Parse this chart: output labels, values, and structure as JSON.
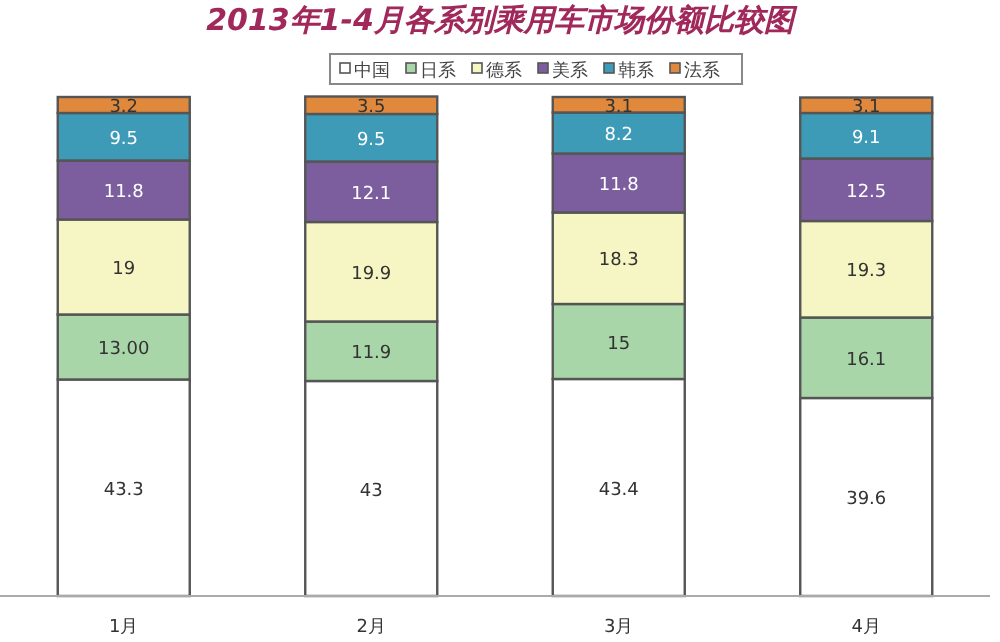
{
  "chart_data": {
    "type": "bar",
    "title": "2013年1-4月各系别乘用车市场份额比较图",
    "categories": [
      "1月",
      "2月",
      "3月",
      "4月"
    ],
    "stacked": true,
    "legend": "top",
    "ylim": [
      0,
      100
    ],
    "series": [
      {
        "name": "中国",
        "color": "#ffffff",
        "values": [
          43.3,
          43,
          43.4,
          39.6
        ],
        "value_labels": [
          "43.3",
          "43",
          "43.4",
          "39.6"
        ]
      },
      {
        "name": "日系",
        "color": "#a9d6a9",
        "values": [
          13.0,
          11.9,
          15,
          16.1
        ],
        "value_labels": [
          "13.00",
          "11.9",
          "15",
          "16.1"
        ]
      },
      {
        "name": "德系",
        "color": "#f6f6c4",
        "values": [
          19,
          19.9,
          18.3,
          19.3
        ],
        "value_labels": [
          "19",
          "19.9",
          "18.3",
          "19.3"
        ]
      },
      {
        "name": "美系",
        "color": "#7c5d9e",
        "values": [
          11.8,
          12.1,
          11.8,
          12.5
        ],
        "value_labels": [
          "11.8",
          "12.1",
          "11.8",
          "12.5"
        ]
      },
      {
        "name": "韩系",
        "color": "#3e9bb8",
        "values": [
          9.5,
          9.5,
          8.2,
          9.1
        ],
        "value_labels": [
          "9.5",
          "9.5",
          "8.2",
          "9.1"
        ]
      },
      {
        "name": "法系",
        "color": "#e0893c",
        "values": [
          3.2,
          3.5,
          3.1,
          3.1
        ],
        "value_labels": [
          "3.2",
          "3.5",
          "3.1",
          "3.1"
        ]
      }
    ]
  }
}
